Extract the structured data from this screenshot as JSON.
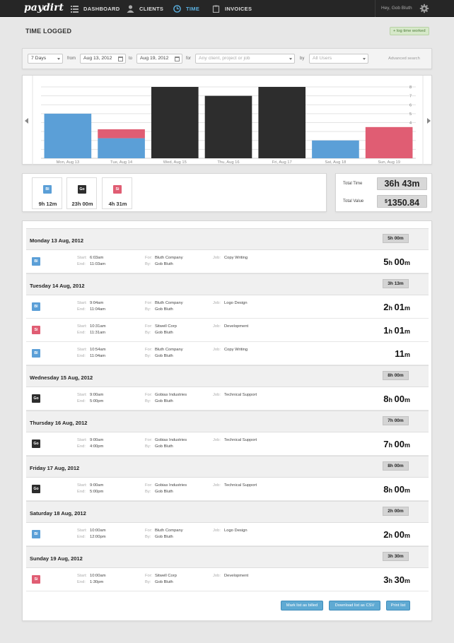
{
  "app": {
    "logo": "paydirt"
  },
  "nav": {
    "dashboard": "DASHBOARD",
    "clients": "CLIENTS",
    "time": "TIME",
    "invoices": "INVOICES"
  },
  "user": {
    "greeting": "Hey, Gob Bluth"
  },
  "page": {
    "title": "TIME LOGGED",
    "log_button": "+ log time worked"
  },
  "filters": {
    "period": "7 Days",
    "from_label": "from",
    "from_date": "Aug 13, 2012",
    "to_label": "to",
    "to_date": "Aug 19, 2012",
    "for_label": "for",
    "client_placeholder": "Any client, project or job",
    "by_label": "by",
    "users": "All Users",
    "advanced": "Advanced search"
  },
  "colors": {
    "Bl": "#5b9fd7",
    "Go": "#2d2d2d",
    "Si": "#e05d73"
  },
  "chart_data": {
    "type": "bar",
    "stacked": true,
    "categories": [
      "Mon, Aug 13",
      "Tue, Aug 14",
      "Wed, Aug 15",
      "Thu, Aug 16",
      "Fri, Aug 17",
      "Sat, Aug 18",
      "Sun, Aug 19"
    ],
    "series": [
      {
        "key": "Bl",
        "color": "#5b9fd7",
        "values": [
          5,
          2.25,
          0,
          0,
          0,
          2,
          0
        ]
      },
      {
        "key": "Si",
        "color": "#e05d73",
        "values": [
          0,
          1,
          0,
          0,
          0,
          0,
          3.5
        ]
      },
      {
        "key": "Go",
        "color": "#2d2d2d",
        "values": [
          0,
          0,
          8,
          7,
          8,
          0,
          0
        ]
      }
    ],
    "yticks": [
      1,
      2,
      3,
      4,
      5,
      6,
      7,
      8
    ],
    "ylim": [
      0,
      8
    ],
    "grid": true,
    "legend": "none"
  },
  "user_totals": [
    {
      "initials": "Bl",
      "time": "9h 12m"
    },
    {
      "initials": "Go",
      "time": "23h 00m"
    },
    {
      "initials": "Si",
      "time": "4h 31m"
    }
  ],
  "totals": {
    "time_label": "Total Time",
    "time_value": "36h 43m",
    "value_label": "Total Value",
    "value_currency": "$",
    "value_amount": "1350.84"
  },
  "labels": {
    "start": "Start:",
    "end": "End:",
    "for": "For:",
    "by": "By:",
    "job": "Job:"
  },
  "days": [
    {
      "name": "Monday 13 Aug, 2012",
      "total": "5h 00m",
      "entries": [
        {
          "initials": "Bl",
          "start": "6:03am",
          "end": "11:03am",
          "client": "Bluth Company",
          "by": "Gob Bluth",
          "job": "Copy Writing",
          "hours": "5",
          "minutes": "00"
        }
      ]
    },
    {
      "name": "Tuesday 14 Aug, 2012",
      "total": "3h 13m",
      "entries": [
        {
          "initials": "Bl",
          "start": "9:04am",
          "end": "11:04am",
          "client": "Bluth Company",
          "by": "Gob Bluth",
          "job": "Logo Design",
          "hours": "2",
          "minutes": "01"
        },
        {
          "initials": "Si",
          "start": "10:31am",
          "end": "11:31am",
          "client": "Sitwell Corp",
          "by": "Gob Bluth",
          "job": "Development",
          "hours": "1",
          "minutes": "01"
        },
        {
          "initials": "Bl",
          "start": "10:54am",
          "end": "11:04am",
          "client": "Bluth Company",
          "by": "Gob Bluth",
          "job": "Copy Writing",
          "hours": "",
          "minutes": "11"
        }
      ]
    },
    {
      "name": "Wednesday 15 Aug, 2012",
      "total": "8h 00m",
      "entries": [
        {
          "initials": "Go",
          "start": "9:00am",
          "end": "5:00pm",
          "client": "Gobias Industries",
          "by": "Gob Bluth",
          "job": "Technical Support",
          "hours": "8",
          "minutes": "00"
        }
      ]
    },
    {
      "name": "Thursday 16 Aug, 2012",
      "total": "7h 00m",
      "entries": [
        {
          "initials": "Go",
          "start": "9:00am",
          "end": "4:00pm",
          "client": "Gobias Industries",
          "by": "Gob Bluth",
          "job": "Technical Support",
          "hours": "7",
          "minutes": "00"
        }
      ]
    },
    {
      "name": "Friday 17 Aug, 2012",
      "total": "8h 00m",
      "entries": [
        {
          "initials": "Go",
          "start": "9:00am",
          "end": "5:00pm",
          "client": "Gobias Industries",
          "by": "Gob Bluth",
          "job": "Technical Support",
          "hours": "8",
          "minutes": "00"
        }
      ]
    },
    {
      "name": "Saturday 18 Aug, 2012",
      "total": "2h 00m",
      "entries": [
        {
          "initials": "Bl",
          "start": "10:00am",
          "end": "12:00pm",
          "client": "Bluth Company",
          "by": "Gob Bluth",
          "job": "Logo Design",
          "hours": "2",
          "minutes": "00"
        }
      ]
    },
    {
      "name": "Sunday 19 Aug, 2012",
      "total": "3h 30m",
      "entries": [
        {
          "initials": "Si",
          "start": "10:00am",
          "end": "1:30pm",
          "client": "Sitwell Corp",
          "by": "Gob Bluth",
          "job": "Development",
          "hours": "3",
          "minutes": "30"
        }
      ]
    }
  ],
  "actions": {
    "mark_billed": "Mark list as billed",
    "download_csv": "Download list as CSV",
    "print": "Print list"
  }
}
